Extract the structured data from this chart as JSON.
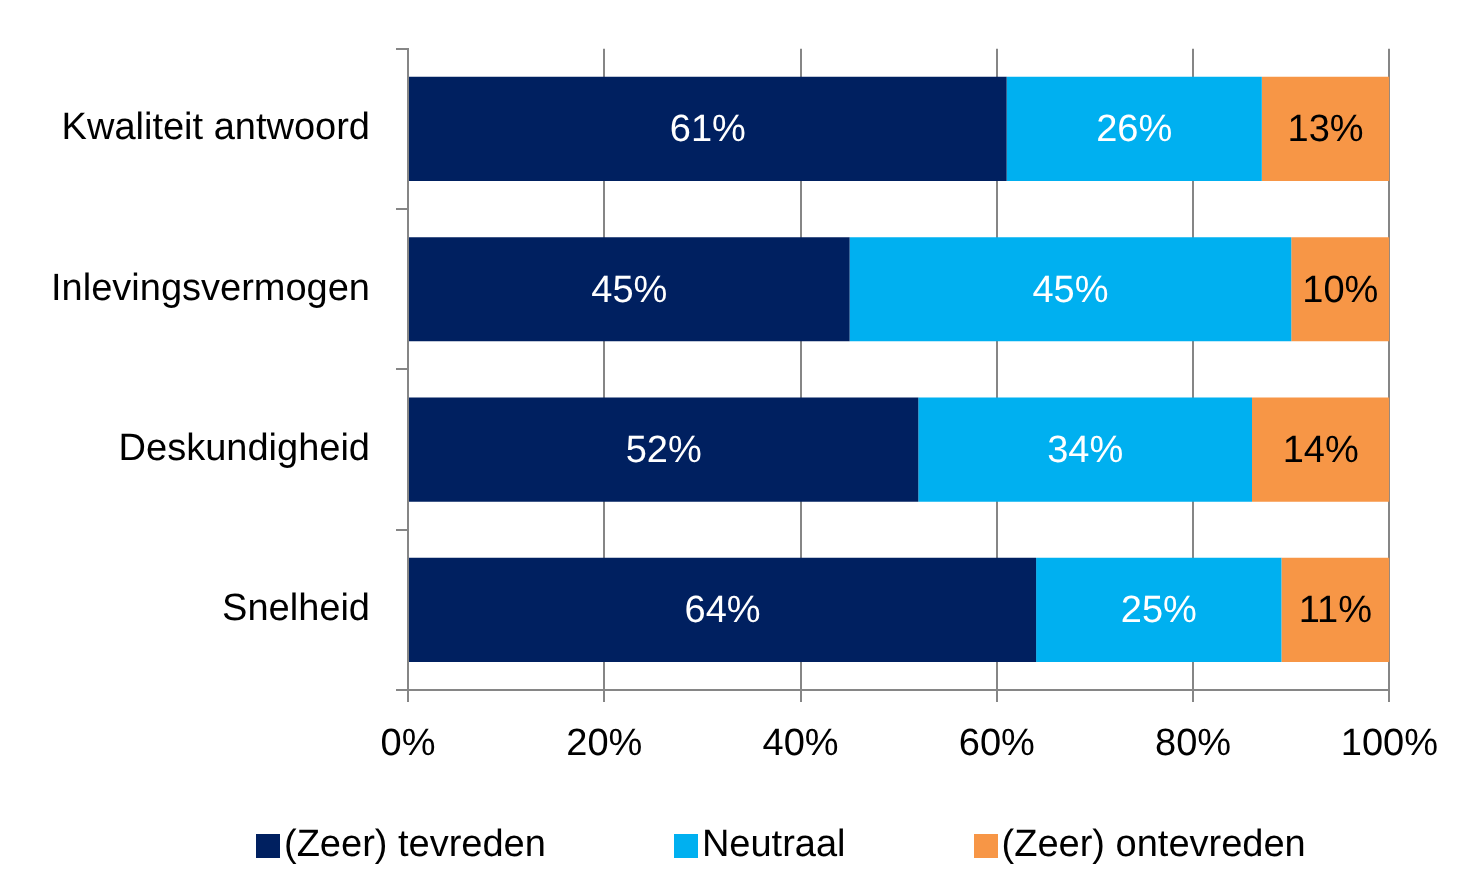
{
  "chart_data": {
    "type": "bar",
    "orientation": "horizontal",
    "stacked": true,
    "categories": [
      "Kwaliteit antwoord",
      "Inlevingsvermogen",
      "Deskundigheid",
      "Snelheid"
    ],
    "series": [
      {
        "name": "(Zeer) tevreden",
        "color": "#002060",
        "values": [
          61,
          45,
          52,
          64
        ],
        "value_labels": [
          "61%",
          "45%",
          "52%",
          "64%"
        ]
      },
      {
        "name": "Neutraal",
        "color": "#00b0f0",
        "values": [
          26,
          45,
          34,
          25
        ],
        "value_labels": [
          "26%",
          "45%",
          "34%",
          "25%"
        ]
      },
      {
        "name": "(Zeer) ontevreden",
        "color": "#f79646",
        "values": [
          13,
          10,
          14,
          11
        ],
        "value_labels": [
          "13%",
          "10%",
          "14%",
          "11%"
        ]
      }
    ],
    "xlim": [
      0,
      100
    ],
    "xticks": [
      {
        "value": 0,
        "label": "0%"
      },
      {
        "value": 20,
        "label": "20%"
      },
      {
        "value": 40,
        "label": "40%"
      },
      {
        "value": 60,
        "label": "60%"
      },
      {
        "value": 80,
        "label": "80%"
      },
      {
        "value": 100,
        "label": "100%"
      }
    ],
    "grid": "x",
    "legend": "bottom"
  }
}
